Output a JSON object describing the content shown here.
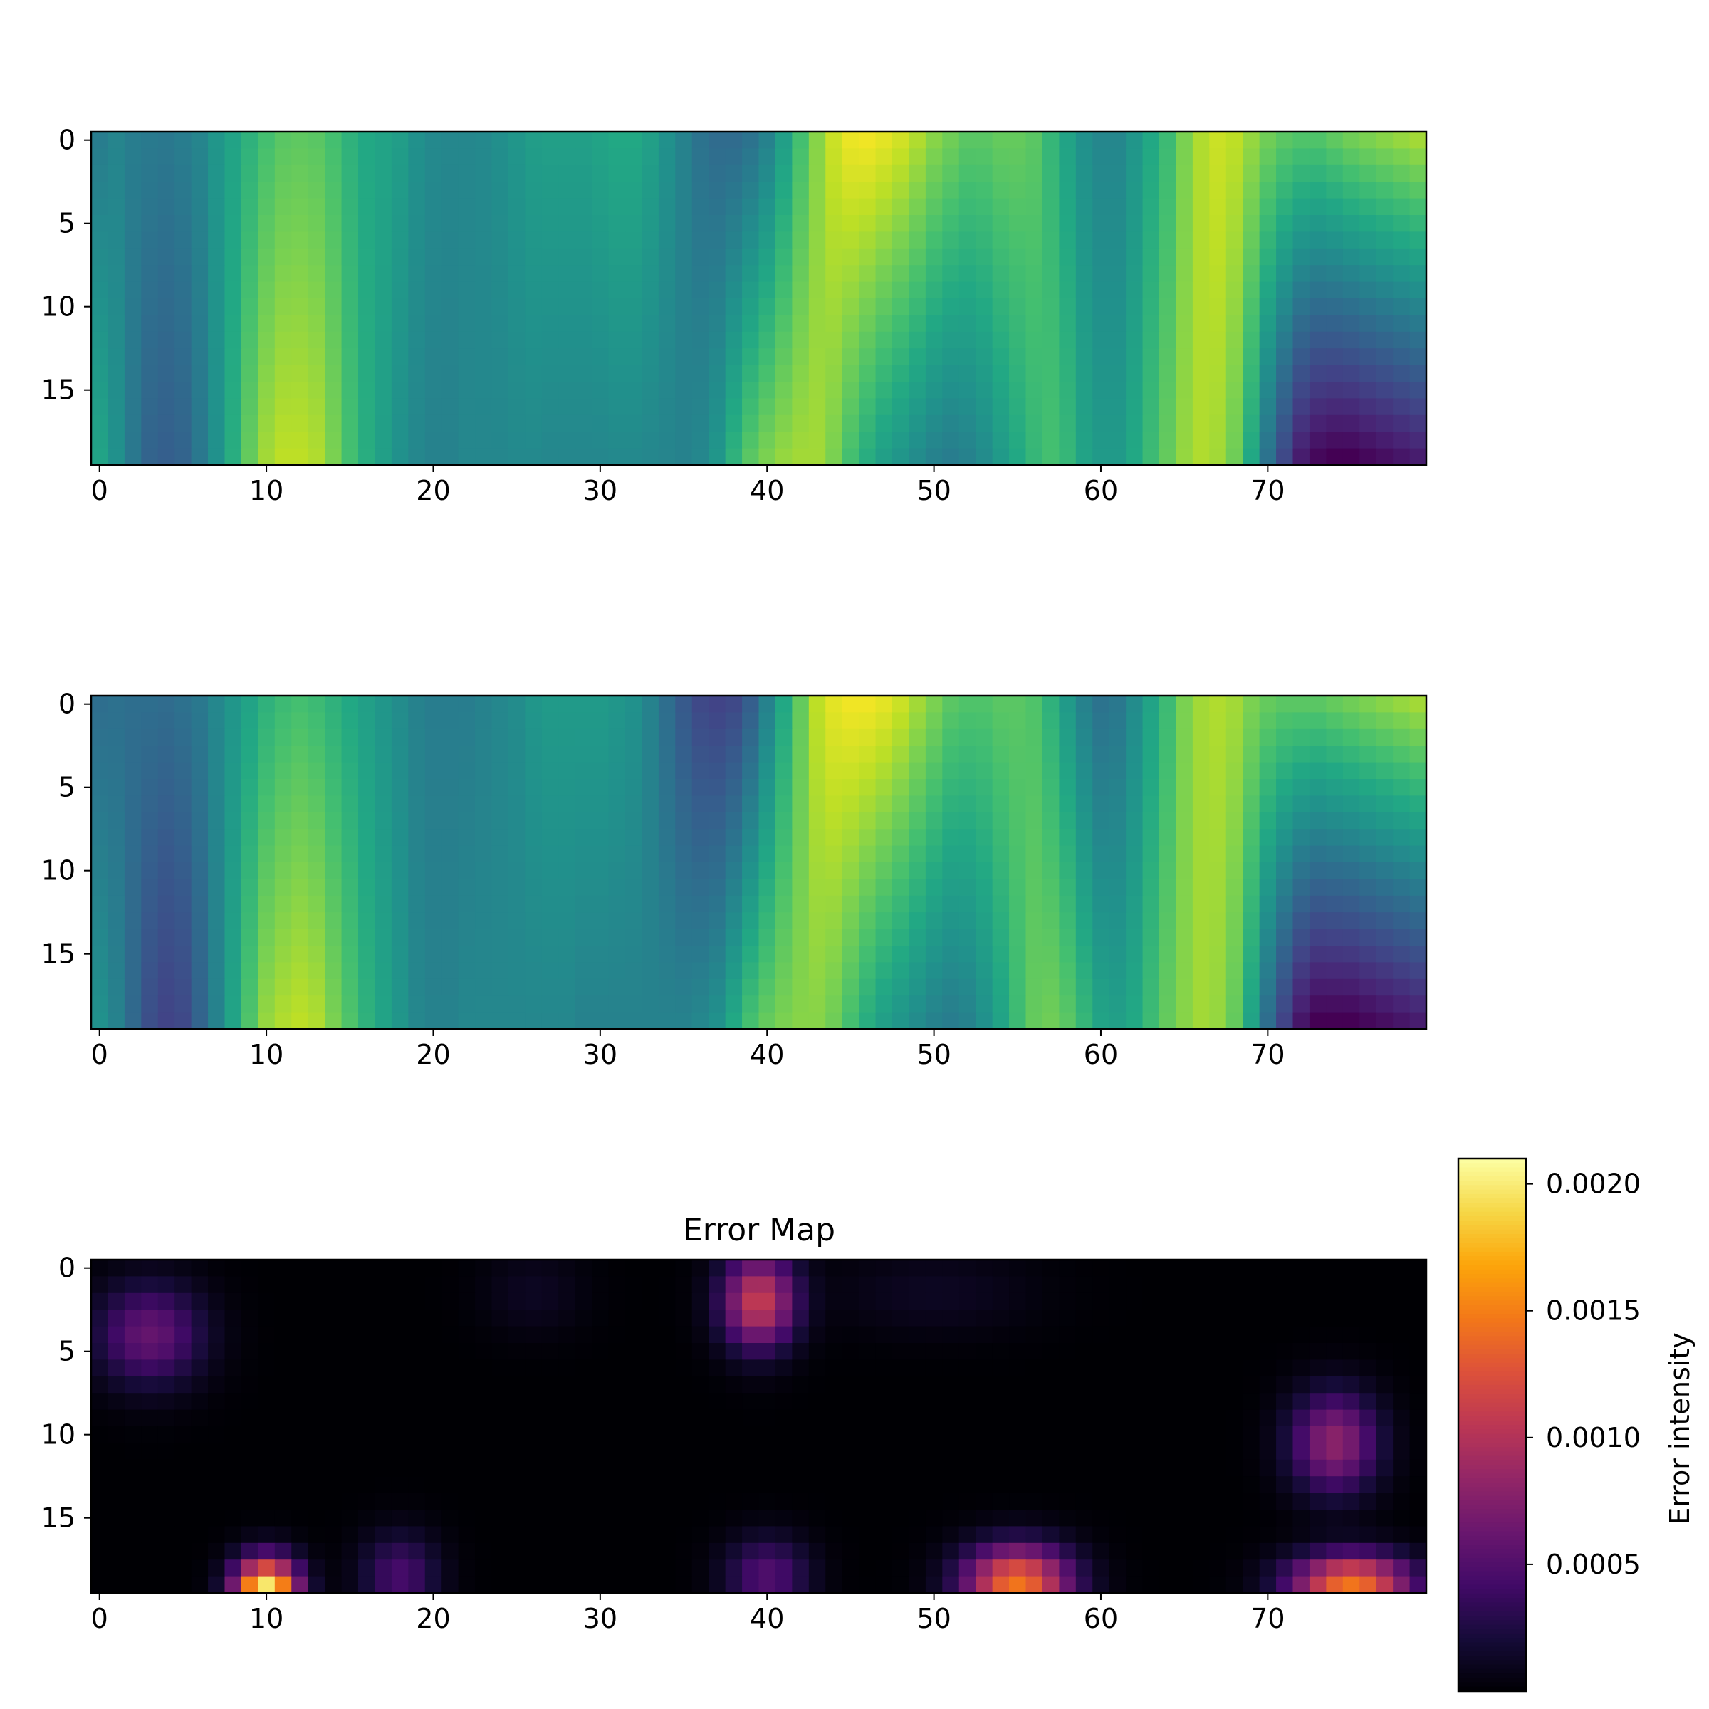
{
  "chart_data": [
    {
      "type": "heatmap",
      "title": "",
      "xlabel": "",
      "ylabel": "",
      "colormap": "viridis",
      "shape": [
        20,
        80
      ],
      "xticks": [
        0,
        10,
        20,
        30,
        40,
        50,
        60,
        70
      ],
      "yticks": [
        0,
        5,
        10,
        15
      ],
      "value_range": [
        0,
        1
      ],
      "column_profile_top": [
        0.42,
        0.45,
        0.42,
        0.41,
        0.4,
        0.42,
        0.45,
        0.52,
        0.58,
        0.64,
        0.7,
        0.74,
        0.75,
        0.74,
        0.7,
        0.64,
        0.6,
        0.58,
        0.55,
        0.5,
        0.47,
        0.46,
        0.46,
        0.47,
        0.49,
        0.52,
        0.55,
        0.56,
        0.56,
        0.56,
        0.58,
        0.6,
        0.6,
        0.56,
        0.5,
        0.44,
        0.38,
        0.35,
        0.35,
        0.38,
        0.44,
        0.56,
        0.7,
        0.82,
        0.92,
        0.97,
        0.98,
        0.96,
        0.93,
        0.88,
        0.82,
        0.78,
        0.74,
        0.74,
        0.76,
        0.76,
        0.74,
        0.66,
        0.58,
        0.5,
        0.46,
        0.46,
        0.52,
        0.6,
        0.68,
        0.8,
        0.88,
        0.92,
        0.9,
        0.84,
        0.78,
        0.74,
        0.72,
        0.72,
        0.75,
        0.78,
        0.8,
        0.82,
        0.84,
        0.86
      ],
      "column_profile_bottom": [
        0.58,
        0.5,
        0.4,
        0.32,
        0.3,
        0.32,
        0.4,
        0.5,
        0.62,
        0.76,
        0.86,
        0.9,
        0.9,
        0.88,
        0.8,
        0.7,
        0.62,
        0.56,
        0.5,
        0.46,
        0.44,
        0.44,
        0.46,
        0.46,
        0.46,
        0.47,
        0.47,
        0.46,
        0.46,
        0.46,
        0.46,
        0.47,
        0.47,
        0.46,
        0.45,
        0.44,
        0.46,
        0.52,
        0.64,
        0.74,
        0.8,
        0.84,
        0.86,
        0.86,
        0.8,
        0.7,
        0.62,
        0.56,
        0.52,
        0.48,
        0.44,
        0.42,
        0.44,
        0.48,
        0.54,
        0.6,
        0.66,
        0.7,
        0.66,
        0.58,
        0.54,
        0.54,
        0.6,
        0.68,
        0.76,
        0.84,
        0.88,
        0.86,
        0.78,
        0.6,
        0.38,
        0.22,
        0.08,
        0.02,
        0.0,
        0.0,
        0.02,
        0.04,
        0.06,
        0.08
      ]
    },
    {
      "type": "heatmap",
      "title": "",
      "xlabel": "",
      "ylabel": "",
      "colormap": "viridis",
      "shape": [
        20,
        80
      ],
      "xticks": [
        0,
        10,
        20,
        30,
        40,
        50,
        60,
        70
      ],
      "yticks": [
        0,
        5,
        10,
        15
      ],
      "value_range": [
        0,
        1
      ],
      "column_profile_top": [
        0.36,
        0.37,
        0.36,
        0.36,
        0.35,
        0.37,
        0.4,
        0.46,
        0.52,
        0.58,
        0.64,
        0.68,
        0.7,
        0.68,
        0.64,
        0.6,
        0.56,
        0.52,
        0.48,
        0.44,
        0.42,
        0.42,
        0.42,
        0.44,
        0.46,
        0.48,
        0.52,
        0.54,
        0.54,
        0.54,
        0.54,
        0.52,
        0.5,
        0.44,
        0.36,
        0.28,
        0.22,
        0.2,
        0.22,
        0.3,
        0.44,
        0.6,
        0.76,
        0.9,
        0.96,
        0.98,
        0.98,
        0.96,
        0.92,
        0.86,
        0.8,
        0.74,
        0.72,
        0.72,
        0.74,
        0.74,
        0.72,
        0.64,
        0.54,
        0.44,
        0.38,
        0.4,
        0.48,
        0.58,
        0.68,
        0.8,
        0.86,
        0.88,
        0.86,
        0.8,
        0.76,
        0.74,
        0.74,
        0.74,
        0.76,
        0.78,
        0.8,
        0.82,
        0.84,
        0.86
      ],
      "column_profile_bottom": [
        0.5,
        0.44,
        0.34,
        0.24,
        0.2,
        0.22,
        0.32,
        0.44,
        0.58,
        0.72,
        0.84,
        0.88,
        0.9,
        0.88,
        0.8,
        0.72,
        0.64,
        0.58,
        0.52,
        0.46,
        0.44,
        0.44,
        0.46,
        0.46,
        0.46,
        0.46,
        0.46,
        0.46,
        0.46,
        0.44,
        0.44,
        0.44,
        0.44,
        0.44,
        0.44,
        0.44,
        0.46,
        0.5,
        0.6,
        0.7,
        0.76,
        0.8,
        0.82,
        0.82,
        0.78,
        0.7,
        0.62,
        0.56,
        0.52,
        0.48,
        0.44,
        0.42,
        0.44,
        0.5,
        0.58,
        0.68,
        0.76,
        0.78,
        0.74,
        0.66,
        0.58,
        0.56,
        0.6,
        0.68,
        0.76,
        0.82,
        0.86,
        0.84,
        0.76,
        0.58,
        0.36,
        0.2,
        0.06,
        0.0,
        0.0,
        0.0,
        0.02,
        0.04,
        0.06,
        0.08
      ]
    },
    {
      "type": "heatmap",
      "title": "Error Map",
      "xlabel": "",
      "ylabel": "",
      "colormap": "inferno",
      "shape": [
        20,
        80
      ],
      "xticks": [
        0,
        10,
        20,
        30,
        40,
        50,
        60,
        70
      ],
      "yticks": [
        0,
        5,
        10,
        15
      ],
      "value_range": [
        0,
        0.0021
      ],
      "hotspots": [
        {
          "x": 3,
          "y": 4,
          "peak": 0.0006,
          "sx": 3.2,
          "sy": 3.0
        },
        {
          "x": 39.5,
          "y": 2,
          "peak": 0.0011,
          "sx": 2.2,
          "sy": 2.8
        },
        {
          "x": 26,
          "y": 1.5,
          "peak": 0.00012,
          "sx": 3.0,
          "sy": 2.5
        },
        {
          "x": 10,
          "y": 19.5,
          "peak": 0.0021,
          "sx": 1.9,
          "sy": 2.0
        },
        {
          "x": 18,
          "y": 18.5,
          "peak": 0.00045,
          "sx": 2.3,
          "sy": 2.5
        },
        {
          "x": 40,
          "y": 18.5,
          "peak": 0.0005,
          "sx": 2.5,
          "sy": 2.3
        },
        {
          "x": 55,
          "y": 19,
          "peak": 0.00145,
          "sx": 3.2,
          "sy": 2.3
        },
        {
          "x": 75,
          "y": 19,
          "peak": 0.00145,
          "sx": 3.6,
          "sy": 1.8
        },
        {
          "x": 74,
          "y": 10.5,
          "peak": 0.0008,
          "sx": 2.6,
          "sy": 3.0
        },
        {
          "x": 50,
          "y": 1.5,
          "peak": 0.00012,
          "sx": 6.0,
          "sy": 2.5
        }
      ],
      "colorbar": {
        "label": "Error intensity",
        "ticks": [
          "0.0005",
          "0.0010",
          "0.0015",
          "0.0020"
        ],
        "tick_values": [
          0.0005,
          0.001,
          0.0015,
          0.002
        ],
        "range": [
          0.0,
          0.0021
        ]
      }
    }
  ]
}
